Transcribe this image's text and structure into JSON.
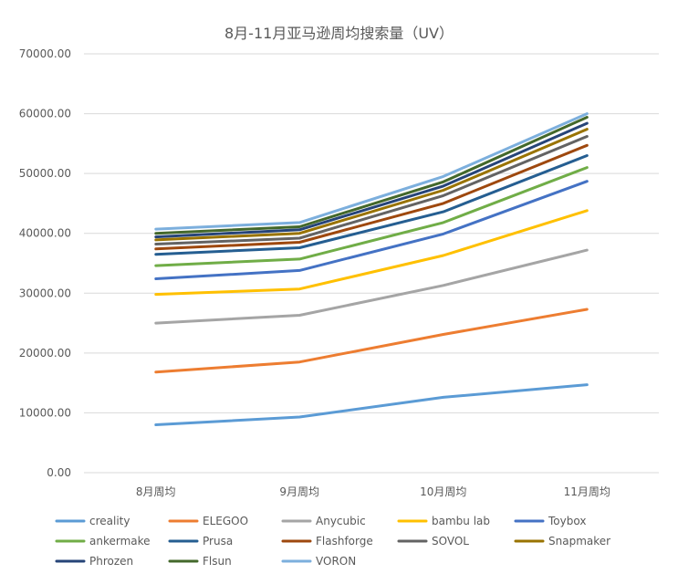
{
  "chart_data": {
    "type": "line",
    "title": "8月-11月亚马逊周均搜索量（UV）",
    "xlabel": "",
    "ylabel": "",
    "categories": [
      "8月周均",
      "9月周均",
      "10月周均",
      "11月周均"
    ],
    "ylim": [
      0,
      70000
    ],
    "yticks": [
      "0.00",
      "10000.00",
      "20000.00",
      "30000.00",
      "40000.00",
      "50000.00",
      "60000.00",
      "70000.00"
    ],
    "legend_position": "bottom",
    "series": [
      {
        "name": "creality",
        "color": "#5B9BD5",
        "values": [
          8000,
          9300,
          12600,
          14700
        ]
      },
      {
        "name": "ELEGOO",
        "color": "#ED7D31",
        "values": [
          16800,
          18500,
          23100,
          27300
        ]
      },
      {
        "name": "Anycubic",
        "color": "#A5A5A5",
        "values": [
          25000,
          26300,
          31300,
          37200
        ]
      },
      {
        "name": "bambu lab",
        "color": "#FFC000",
        "values": [
          29800,
          30700,
          36300,
          43800
        ]
      },
      {
        "name": "Toybox",
        "color": "#4472C4",
        "values": [
          32400,
          33800,
          39900,
          48700
        ]
      },
      {
        "name": "ankermake",
        "color": "#70AD47",
        "values": [
          34600,
          35700,
          41800,
          51000
        ]
      },
      {
        "name": "Prusa",
        "color": "#255E91",
        "values": [
          36500,
          37600,
          43600,
          53000
        ]
      },
      {
        "name": "Flashforge",
        "color": "#9E480E",
        "values": [
          37400,
          38500,
          45000,
          54700
        ]
      },
      {
        "name": "SOVOL",
        "color": "#636363",
        "values": [
          38200,
          39200,
          46300,
          56200
        ]
      },
      {
        "name": "Snapmaker",
        "color": "#997300",
        "values": [
          38900,
          40000,
          47200,
          57400
        ]
      },
      {
        "name": "Phrozen",
        "color": "#264478",
        "values": [
          39400,
          40600,
          47900,
          58400
        ]
      },
      {
        "name": "Flsun",
        "color": "#43682B",
        "values": [
          40000,
          41100,
          48600,
          59400
        ]
      },
      {
        "name": "VORON",
        "color": "#7CAFDD",
        "values": [
          40700,
          41800,
          49500,
          60000
        ]
      }
    ]
  }
}
